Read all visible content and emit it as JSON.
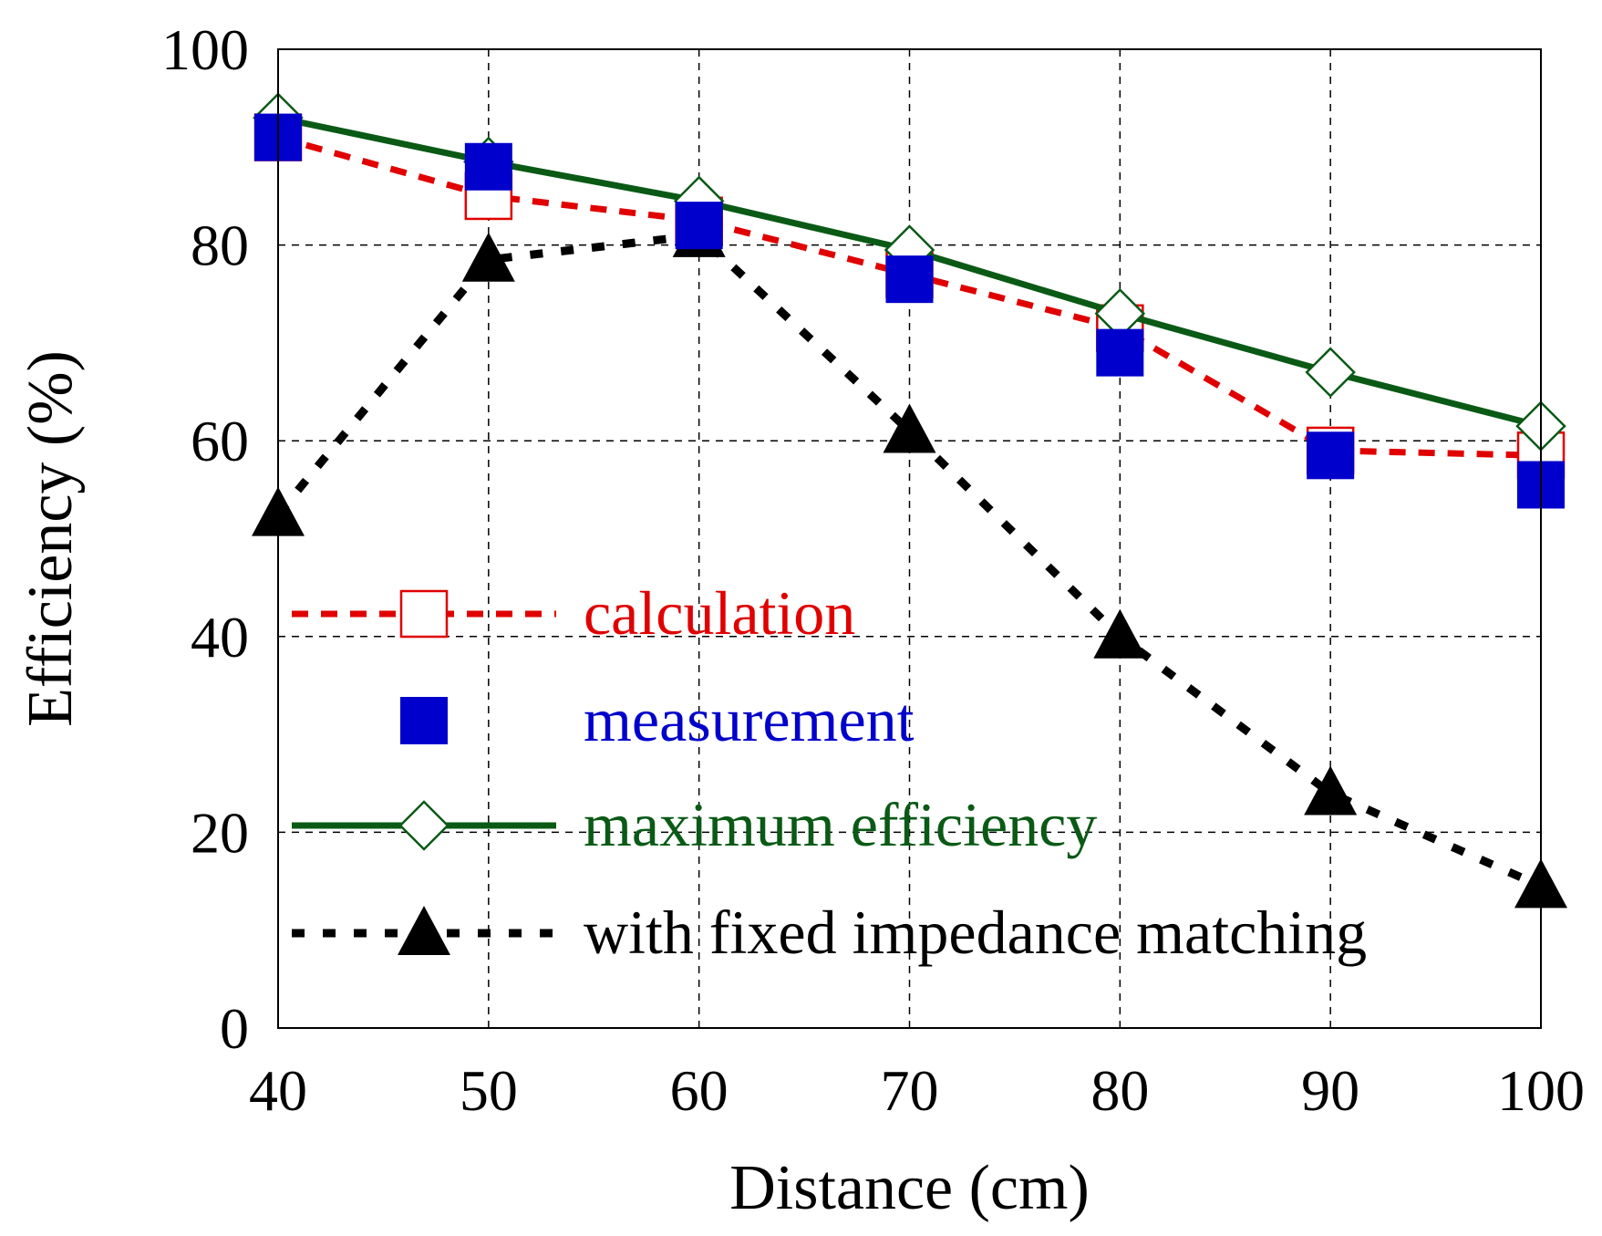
{
  "chart_data": {
    "type": "line",
    "title": "",
    "xlabel": "Distance (cm)",
    "ylabel": "Efficiency (%)",
    "xlim": [
      40,
      100
    ],
    "ylim": [
      0,
      100
    ],
    "xticks": [
      "40",
      "50",
      "60",
      "70",
      "80",
      "90",
      "100"
    ],
    "yticks": [
      "0",
      "20",
      "40",
      "60",
      "80",
      "100"
    ],
    "grid": true,
    "legend_position": "center-left",
    "x": [
      40,
      50,
      60,
      70,
      80,
      90,
      100
    ],
    "series": [
      {
        "key": "calculation",
        "name": "calculation",
        "values": [
          91,
          85,
          82.5,
          77,
          71.5,
          59,
          58.5
        ],
        "color": "#e00000",
        "line": "dashed",
        "marker": "open-square"
      },
      {
        "key": "measurement",
        "name": "measurement",
        "values": [
          91,
          88,
          82,
          76.5,
          69,
          58.5,
          55.5
        ],
        "color": "#0000cc",
        "line": "none",
        "marker": "filled-square"
      },
      {
        "key": "maximum",
        "name": "maximum efficiency",
        "values": [
          93,
          88.5,
          84.5,
          79.5,
          73,
          67,
          61.5
        ],
        "color": "#0a5a16",
        "line": "solid",
        "marker": "open-diamond"
      },
      {
        "key": "fixed",
        "name": "with fixed impedance matching",
        "values": [
          52.5,
          78.5,
          81,
          61,
          40,
          24,
          14.5
        ],
        "color": "#000000",
        "line": "dashed",
        "marker": "filled-triangle"
      }
    ]
  }
}
